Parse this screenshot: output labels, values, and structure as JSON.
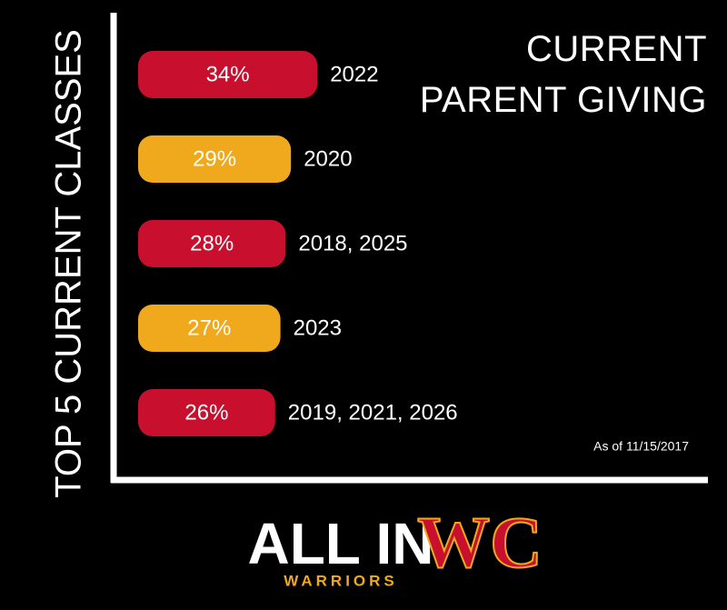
{
  "chart_data": {
    "type": "barh",
    "title": "CURRENT PARENT GIVING",
    "y_label": "TOP 5 CURRENT CLASSES",
    "annotation": "As of 11/15/2017",
    "categories": [
      "2022",
      "2020",
      "2018, 2025",
      "2023",
      "2019, 2021, 2026"
    ],
    "values": [
      34,
      29,
      28,
      27,
      26
    ],
    "value_labels": [
      "34%",
      "29%",
      "28%",
      "27%",
      "26%"
    ],
    "colors": [
      "#c8102e",
      "#f0a81c",
      "#c8102e",
      "#f0a81c",
      "#c8102e"
    ]
  },
  "logo": {
    "main": "ALL IN",
    "sub": "WARRIORS",
    "mark": "WC"
  }
}
